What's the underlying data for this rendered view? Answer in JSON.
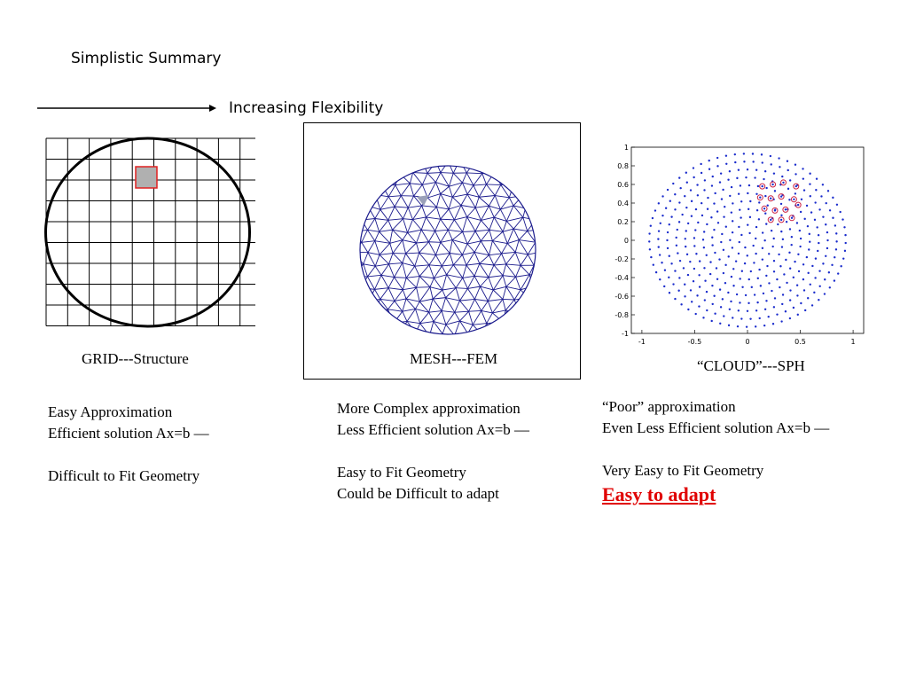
{
  "slide": {
    "title": "Simplistic Summary",
    "arrow_label": "Increasing Flexibility"
  },
  "panels": {
    "grid": {
      "caption": "GRID---Structure",
      "lines": [
        "Easy Approximation",
        "Efficient solution Ax=b —",
        "",
        "Difficult to Fit Geometry"
      ]
    },
    "mesh": {
      "caption": "MESH---FEM",
      "lines": [
        "More Complex approximation",
        "Less Efficient solution Ax=b —",
        "",
        "Easy to Fit Geometry",
        "Could be Difficult to adapt"
      ]
    },
    "cloud": {
      "caption": "“CLOUD”---SPH",
      "lines": [
        "“Poor” approximation",
        "Even Less Efficient solution Ax=b —",
        "",
        "Very Easy to Fit Geometry"
      ],
      "highlight": "Easy to adapt",
      "highlight_color": "#e00000",
      "x_ticks": [
        "-1",
        "-0.5",
        "0",
        "0.5",
        "1"
      ],
      "y_ticks": [
        "1",
        "0.8",
        "0.6",
        "0.4",
        "0.2",
        "0",
        "-0.2",
        "-0.4",
        "-0.6",
        "-0.8",
        "-1"
      ]
    }
  },
  "colors": {
    "mesh_lines": "#1a1a8c",
    "cloud_points": "#1a2ccc",
    "cloud_highlight_ring": "#cc2244",
    "grid_cell_fill": "#b0b0b0",
    "grid_cell_border": "#e02020"
  }
}
